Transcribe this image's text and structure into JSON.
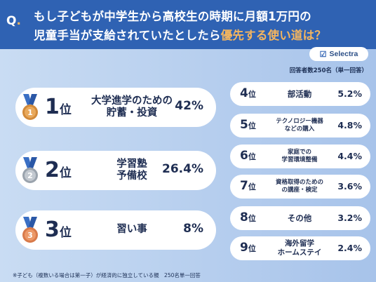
{
  "header": {
    "q_label": "Q",
    "q_dot": ".",
    "title_line1": "もし子どもが中学生から高校生の時期に月額1万円の",
    "title_line2_plain": "児童手当が支給されていたとしたら",
    "title_line2_highlight": "優先する使い道は？"
  },
  "brand": {
    "name": "Selectra"
  },
  "respondents": "回答者数250名（単一回答）",
  "top3": [
    {
      "medal": "1",
      "rank": "1",
      "unit": "位",
      "label_line1": "大学進学のための",
      "label_line2": "貯蓄・投資",
      "percent": "42%",
      "medal_color": "#d28a3a"
    },
    {
      "medal": "2",
      "rank": "2",
      "unit": "位",
      "label_line1": "学習塾",
      "label_line2": "予備校",
      "percent": "26.4%",
      "medal_color": "#9aa3ad"
    },
    {
      "medal": "3",
      "rank": "3",
      "unit": "位",
      "label_line1": "習い事",
      "label_line2": "",
      "percent": "8%",
      "medal_color": "#d87a4a"
    }
  ],
  "others": [
    {
      "rank": "4",
      "unit": "位",
      "label_line1": "部活動",
      "label_line2": "",
      "percent": "5.2%"
    },
    {
      "rank": "5",
      "unit": "位",
      "label_line1": "テクノロジー機器",
      "label_line2": "などの購入",
      "percent": "4.8%"
    },
    {
      "rank": "6",
      "unit": "位",
      "label_line1": "家庭での",
      "label_line2": "学習環境整備",
      "percent": "4.4%"
    },
    {
      "rank": "7",
      "unit": "位",
      "label_line1": "資格取得のための",
      "label_line2": "の講座・検定",
      "percent": "3.6%"
    },
    {
      "rank": "8",
      "unit": "位",
      "label_line1": "その他",
      "label_line2": "",
      "percent": "3.2%"
    },
    {
      "rank": "9",
      "unit": "位",
      "label_line1": "海外留学",
      "label_line2": "ホームステイ",
      "percent": "2.4%"
    }
  ],
  "footnote": "※子ども（複数いる場合は第一子）が経済的に独立している親　250名単一回答"
}
